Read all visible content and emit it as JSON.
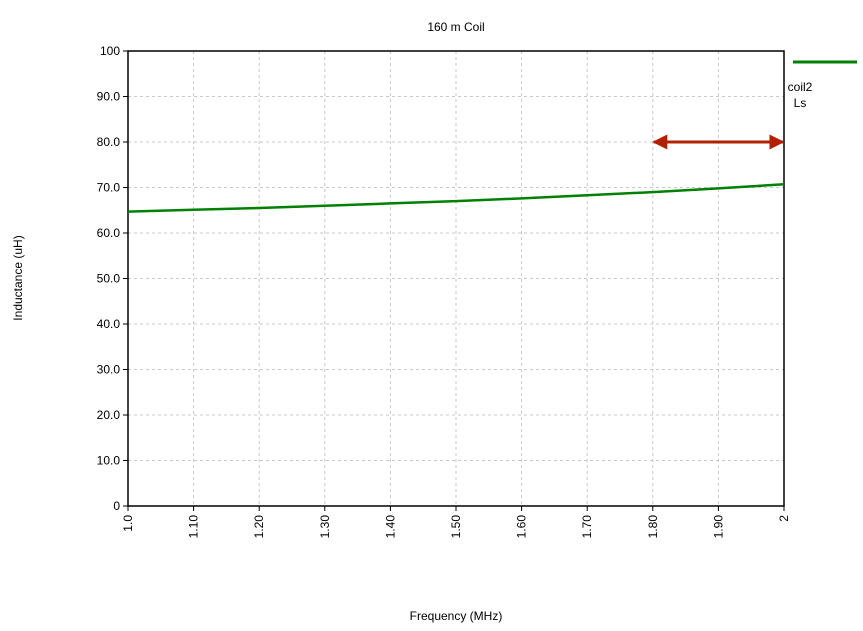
{
  "chart_data": {
    "type": "line",
    "title": "160 m Coil",
    "xlabel": "Frequency (MHz)",
    "ylabel": "Inductance (uH)",
    "xlim": [
      1.0,
      2.0
    ],
    "ylim": [
      0,
      100
    ],
    "x_tick_labels": [
      "1.0",
      "1.10",
      "1.20",
      "1.30",
      "1.40",
      "1.50",
      "1.60",
      "1.70",
      "1.80",
      "1.90",
      "2"
    ],
    "y_tick_labels": [
      "0",
      "10.0",
      "20.0",
      "30.0",
      "40.0",
      "50.0",
      "60.0",
      "70.0",
      "80.0",
      "90.0",
      "100"
    ],
    "grid": true,
    "legend": {
      "position": "top-right",
      "label_lines": [
        "coil2",
        "Ls"
      ]
    },
    "series": [
      {
        "name": "coil2 Ls",
        "color": "#008000",
        "x": [
          1.0,
          1.1,
          1.2,
          1.3,
          1.4,
          1.5,
          1.6,
          1.7,
          1.8,
          1.9,
          2.0
        ],
        "y": [
          64.7,
          65.1,
          65.5,
          66.0,
          66.5,
          67.0,
          67.6,
          68.3,
          69.0,
          69.8,
          70.7
        ]
      }
    ],
    "annotations": [
      {
        "type": "double-arrow",
        "color": "#b22000",
        "x": [
          1.8,
          2.0
        ],
        "y": 80
      }
    ]
  }
}
